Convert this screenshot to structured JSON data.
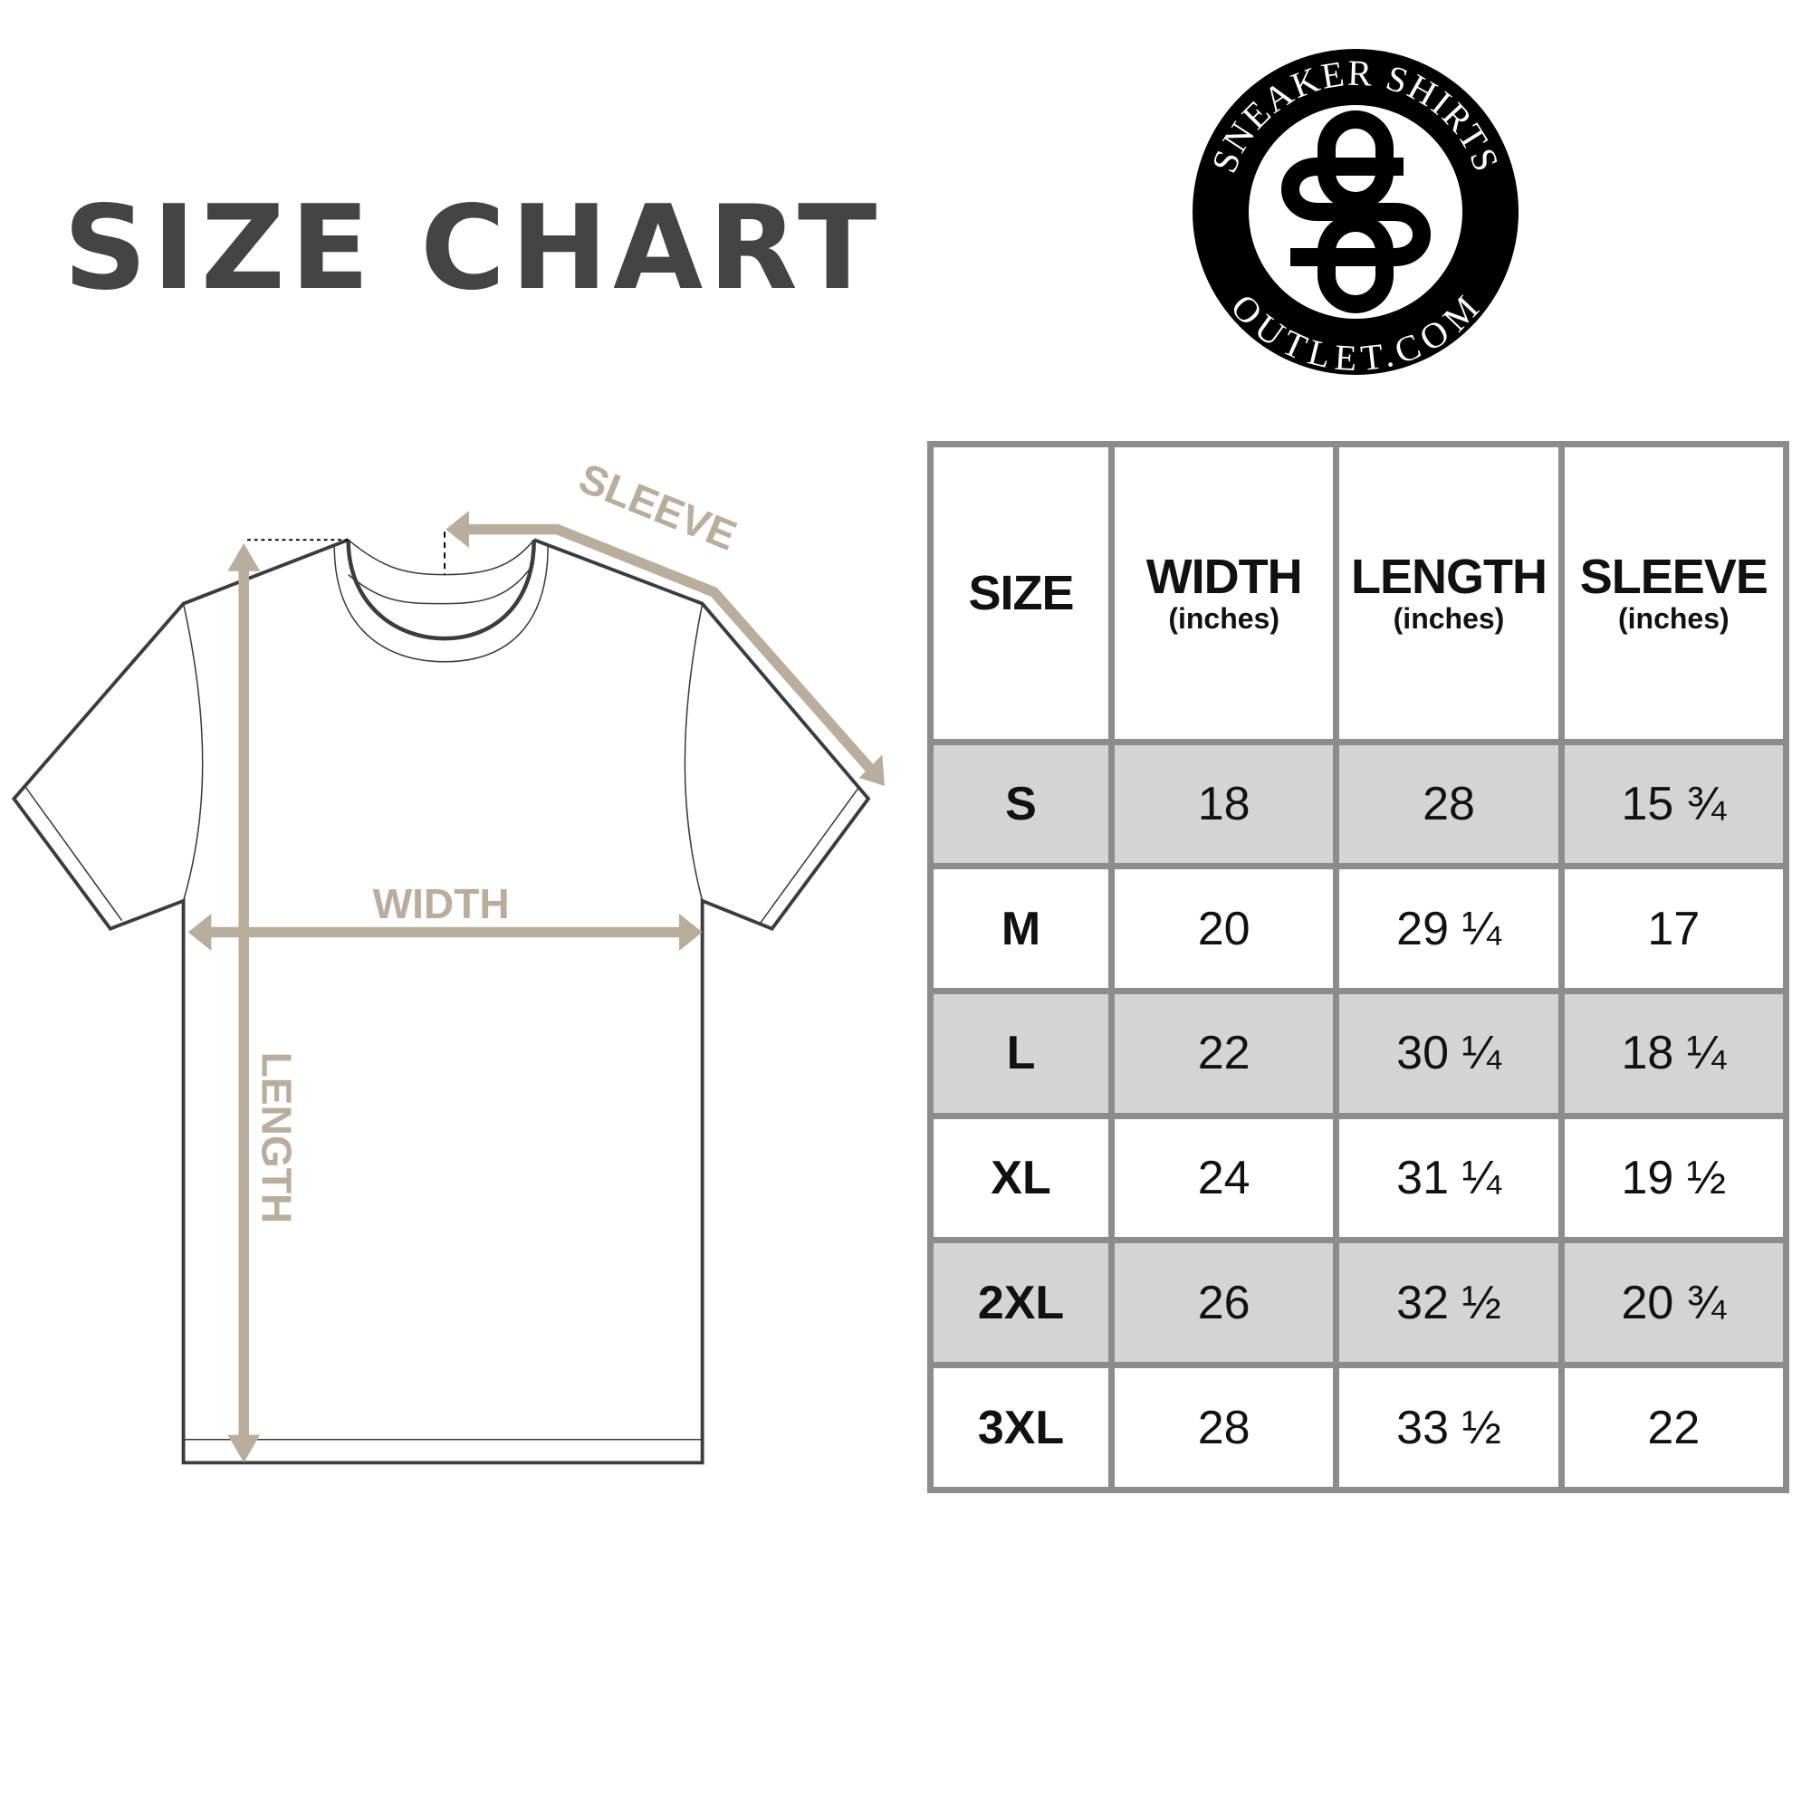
{
  "title": {
    "word1": "SIZE",
    "word2": "CHART"
  },
  "logo": {
    "top_text": "SNEAKER SHIRTS",
    "bottom_text": "OUTLET.COM",
    "monogram": "SO"
  },
  "diagram": {
    "labels": {
      "sleeve": "SLEEVE",
      "width": "WIDTH",
      "length": "LENGTH"
    },
    "colors": {
      "arrow": "#b9ad9e",
      "outline": "#3c3c3c"
    }
  },
  "chart_data": {
    "type": "table",
    "columns": [
      {
        "label": "SIZE",
        "unit": ""
      },
      {
        "label": "WIDTH",
        "unit": "(inches)"
      },
      {
        "label": "LENGTH",
        "unit": "(inches)"
      },
      {
        "label": "SLEEVE",
        "unit": "(inches)"
      }
    ],
    "rows": [
      [
        "S",
        "18",
        "28",
        "15 ¾"
      ],
      [
        "M",
        "20",
        "29 ¼",
        "17"
      ],
      [
        "L",
        "22",
        "30 ¼",
        "18 ¼"
      ],
      [
        "XL",
        "24",
        "31 ¼",
        "19 ½"
      ],
      [
        "2XL",
        "26",
        "32 ½",
        "20 ¾"
      ],
      [
        "3XL",
        "28",
        "33 ½",
        "22"
      ]
    ],
    "colors": {
      "border": "#8c8c8c",
      "shaded_row": "#d4d4d4"
    }
  }
}
